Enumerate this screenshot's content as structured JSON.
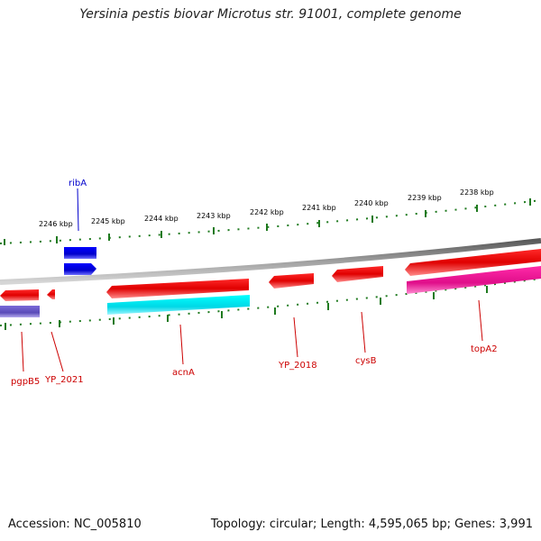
{
  "title": "Yersinia pestis biovar Microtus str. 91001, complete genome",
  "footer": {
    "accession": "Accession: NC_005810",
    "summary": "Topology: circular; Length: 4,595,065 bp; Genes: 3,991"
  },
  "ticks": [
    "2246 kbp",
    "2245 kbp",
    "2244 kbp",
    "2243 kbp",
    "2242 kbp",
    "2241 kbp",
    "2240 kbp",
    "2239 kbp",
    "2238 kbp"
  ],
  "colors": {
    "backbone": "#8a8a8a",
    "ticks": "#1f7a1f",
    "gene_red": "#ff0000",
    "gene_blue": "#0000ee",
    "gene_cyan": "#00e5ee",
    "gene_magenta": "#ff1aa0",
    "gene_slate": "#6a5acd",
    "label_red": "#cc0000",
    "label_blue": "#0000cc"
  },
  "genes": [
    {
      "name": "ribA",
      "strand": "forward",
      "color": "blue"
    },
    {
      "name": "pgpB5",
      "strand": "reverse",
      "color": "slate"
    },
    {
      "name": "YP_2021",
      "strand": "reverse",
      "color": "red"
    },
    {
      "name": "acnA",
      "strand": "reverse",
      "color": "red/cyan"
    },
    {
      "name": "YP_2018",
      "strand": "reverse",
      "color": "red"
    },
    {
      "name": "cysB",
      "strand": "reverse",
      "color": "red"
    },
    {
      "name": "topA2",
      "strand": "reverse",
      "color": "red/magenta"
    }
  ]
}
